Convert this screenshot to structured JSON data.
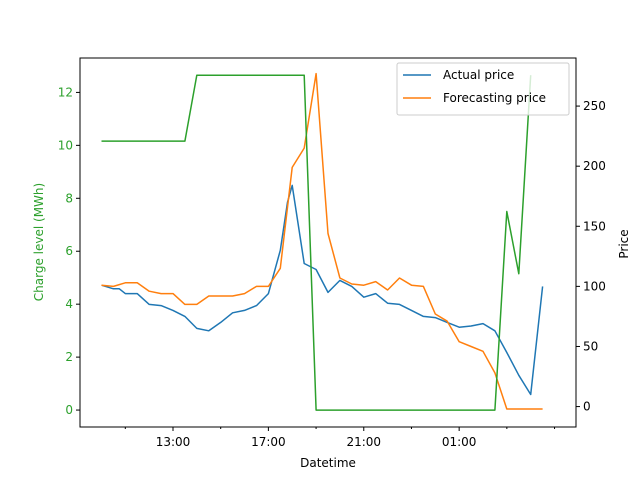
{
  "chart_data": {
    "type": "line",
    "xlabel": "Datetime",
    "left_axis": {
      "label": "Charge level (MWh)",
      "color": "#2ca02c",
      "ylim": [
        -0.64,
        13.3
      ],
      "ticks": [
        0,
        2,
        4,
        6,
        8,
        10,
        12
      ]
    },
    "right_axis": {
      "label": "Price",
      "ylim": [
        -17,
        290
      ],
      "ticks": [
        0,
        50,
        100,
        150,
        200,
        250
      ]
    },
    "x_ticks": [
      {
        "label": "13:00",
        "value": 13
      },
      {
        "label": "17:00",
        "value": 17
      },
      {
        "label": "21:00",
        "value": 21
      },
      {
        "label": "01:00",
        "value": 25
      }
    ],
    "xlim": [
      9.1,
      29.9
    ],
    "legend": {
      "placement": "top-right",
      "entries": [
        "Actual price",
        "Forecasting price"
      ]
    },
    "series": [
      {
        "name": "Actual price",
        "axis": "right",
        "color": "#1f77b4",
        "x": [
          10.0,
          10.5,
          10.75,
          11.0,
          11.5,
          12.0,
          12.5,
          13.0,
          13.5,
          14.0,
          14.5,
          15.0,
          15.5,
          16.0,
          16.5,
          17.0,
          17.5,
          17.8,
          18.0,
          18.5,
          19.0,
          19.5,
          20.0,
          20.5,
          21.0,
          21.5,
          22.0,
          22.5,
          23.0,
          23.5,
          24.0,
          24.5,
          25.0,
          25.5,
          26.0,
          26.5,
          27.0,
          27.5,
          28.0,
          28.5
        ],
        "y": [
          101,
          98,
          98,
          94,
          94,
          85,
          84,
          80,
          75,
          65,
          63,
          70,
          78,
          80,
          84,
          94,
          130,
          170,
          184,
          119,
          114,
          95,
          105,
          100,
          91,
          94,
          86,
          85,
          80,
          75,
          74,
          70,
          66,
          67,
          69,
          63,
          45,
          26,
          10,
          100
        ]
      },
      {
        "name": "Forecasting price",
        "axis": "right",
        "color": "#ff7f0e",
        "x": [
          10.0,
          10.5,
          11.0,
          11.5,
          12.0,
          12.5,
          13.0,
          13.5,
          14.0,
          14.5,
          15.0,
          15.5,
          16.0,
          16.5,
          17.0,
          17.5,
          18.0,
          18.5,
          19.0,
          19.5,
          20.0,
          20.5,
          21.0,
          21.5,
          22.0,
          22.5,
          23.0,
          23.5,
          24.0,
          24.5,
          25.0,
          25.5,
          26.0,
          26.5,
          27.0,
          27.5,
          28.0,
          28.5
        ],
        "y": [
          101,
          100,
          103,
          103,
          96,
          94,
          94,
          85,
          85,
          92,
          92,
          92,
          94,
          100,
          100,
          115,
          199,
          215,
          277,
          144,
          107,
          102,
          101,
          104,
          97,
          107,
          101,
          100,
          77,
          71,
          54,
          50,
          46,
          28,
          -2,
          -2,
          -2,
          -2
        ]
      },
      {
        "name": "Charge level",
        "axis": "left",
        "color": "#2ca02c",
        "x": [
          10.0,
          13.5,
          14.0,
          18.5,
          19.0,
          26.5,
          27.0,
          27.5,
          28.0
        ],
        "y": [
          10.16,
          10.16,
          12.65,
          12.65,
          0.0,
          0.0,
          7.5,
          5.15,
          12.65
        ]
      }
    ]
  }
}
